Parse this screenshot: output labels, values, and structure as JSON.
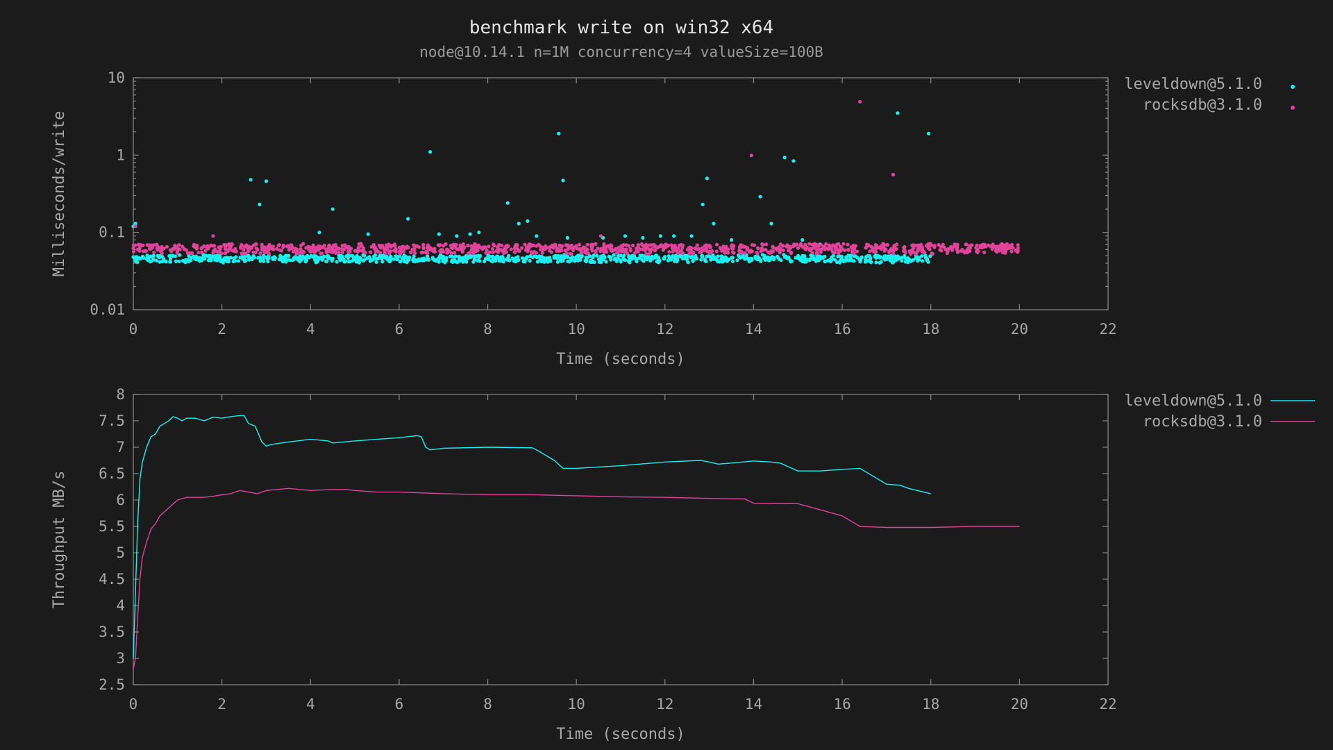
{
  "title": "benchmark write on win32 x64",
  "subtitle": "node@10.14.1 n=1M concurrency=4 valueSize=100B",
  "colors": {
    "background": "#1b1b1b",
    "leveldown": "#19f0f0",
    "rocksdb": "#e0439a",
    "axis": "#8a8a8a",
    "text": "#a8a8a8"
  },
  "chart_data": [
    {
      "type": "scatter",
      "xlabel": "Time (seconds)",
      "ylabel": "Milliseconds/write",
      "xlim": [
        0,
        22
      ],
      "ylim": [
        0.01,
        10
      ],
      "yscale": "log",
      "xticks": [
        0,
        2,
        4,
        6,
        8,
        10,
        12,
        14,
        16,
        18,
        20,
        22
      ],
      "yticks": [
        0.01,
        0.1,
        1,
        10
      ],
      "ytick_labels": [
        "0.01",
        "0.1",
        "1",
        "10"
      ],
      "legend_position": "top-right outside",
      "series": [
        {
          "name": "leveldown@5.1.0",
          "color": "#19f0f0",
          "band": {
            "x": [
              0,
              18
            ],
            "center": 0.046,
            "spread": 0.004
          },
          "outliers": [
            [
              0.0,
              0.12
            ],
            [
              0.05,
              0.13
            ],
            [
              2.65,
              0.48
            ],
            [
              2.85,
              0.23
            ],
            [
              3.0,
              0.46
            ],
            [
              4.2,
              0.1
            ],
            [
              4.5,
              0.2
            ],
            [
              5.3,
              0.095
            ],
            [
              6.2,
              0.15
            ],
            [
              6.7,
              1.1
            ],
            [
              6.9,
              0.095
            ],
            [
              7.3,
              0.09
            ],
            [
              7.6,
              0.095
            ],
            [
              7.8,
              0.1
            ],
            [
              8.45,
              0.24
            ],
            [
              8.7,
              0.13
            ],
            [
              8.9,
              0.14
            ],
            [
              9.1,
              0.09
            ],
            [
              9.6,
              1.9
            ],
            [
              9.7,
              0.47
            ],
            [
              9.8,
              0.085
            ],
            [
              10.6,
              0.085
            ],
            [
              11.1,
              0.09
            ],
            [
              11.5,
              0.085
            ],
            [
              11.9,
              0.09
            ],
            [
              12.2,
              0.09
            ],
            [
              12.6,
              0.09
            ],
            [
              12.85,
              0.23
            ],
            [
              12.95,
              0.5
            ],
            [
              13.1,
              0.13
            ],
            [
              13.5,
              0.08
            ],
            [
              14.15,
              0.29
            ],
            [
              14.4,
              0.13
            ],
            [
              14.7,
              0.93
            ],
            [
              14.9,
              0.84
            ],
            [
              15.1,
              0.08
            ],
            [
              15.5,
              0.07
            ],
            [
              17.25,
              3.5
            ],
            [
              17.95,
              1.9
            ]
          ]
        },
        {
          "name": "rocksdb@3.1.0",
          "color": "#e0439a",
          "band": {
            "x": [
              0,
              20
            ],
            "center": 0.062,
            "spread": 0.007,
            "gap": [
              16.35,
              16.5
            ]
          },
          "outliers": [
            [
              0.05,
              0.12
            ],
            [
              1.8,
              0.09
            ],
            [
              10.55,
              0.09
            ],
            [
              13.95,
              0.99
            ],
            [
              16.4,
              4.9
            ],
            [
              17.15,
              0.56
            ]
          ]
        }
      ]
    },
    {
      "type": "line",
      "xlabel": "Time (seconds)",
      "ylabel": "Throughput MB/s",
      "xlim": [
        0,
        22
      ],
      "ylim": [
        2.5,
        8
      ],
      "xticks": [
        0,
        2,
        4,
        6,
        8,
        10,
        12,
        14,
        16,
        18,
        20,
        22
      ],
      "yticks": [
        2.5,
        3,
        3.5,
        4,
        4.5,
        5,
        5.5,
        6,
        6.5,
        7,
        7.5,
        8
      ],
      "ytick_labels": [
        "2.5",
        "3",
        "3.5",
        "4",
        "4.5",
        "5",
        "5.5",
        "6",
        "6.5",
        "7",
        "7.5",
        "8"
      ],
      "legend_position": "top-right outside",
      "series": [
        {
          "name": "leveldown@5.1.0",
          "color": "#19f0f0",
          "x": [
            0,
            0.05,
            0.1,
            0.15,
            0.2,
            0.3,
            0.4,
            0.5,
            0.6,
            0.7,
            0.8,
            0.9,
            1.0,
            1.1,
            1.2,
            1.4,
            1.6,
            1.8,
            2.0,
            2.2,
            2.4,
            2.5,
            2.6,
            2.75,
            2.9,
            3.0,
            3.1,
            3.5,
            4.0,
            4.4,
            4.5,
            5.0,
            5.5,
            6.0,
            6.4,
            6.5,
            6.6,
            6.7,
            7.0,
            8.0,
            9.0,
            9.1,
            9.5,
            9.7,
            10.0,
            11.0,
            12.0,
            12.8,
            13.0,
            13.2,
            13.5,
            14.0,
            14.4,
            14.6,
            15.0,
            15.5,
            16.0,
            16.4,
            17.0,
            17.3,
            17.5,
            18.0
          ],
          "values": [
            3.0,
            4.3,
            5.6,
            6.4,
            6.7,
            7.0,
            7.2,
            7.25,
            7.4,
            7.45,
            7.5,
            7.58,
            7.55,
            7.5,
            7.55,
            7.55,
            7.5,
            7.57,
            7.55,
            7.58,
            7.6,
            7.6,
            7.45,
            7.4,
            7.1,
            7.02,
            7.05,
            7.1,
            7.15,
            7.12,
            7.08,
            7.12,
            7.15,
            7.18,
            7.22,
            7.2,
            7.0,
            6.95,
            6.98,
            7.0,
            6.99,
            6.95,
            6.75,
            6.6,
            6.6,
            6.65,
            6.72,
            6.75,
            6.72,
            6.68,
            6.7,
            6.74,
            6.72,
            6.7,
            6.55,
            6.55,
            6.58,
            6.6,
            6.3,
            6.28,
            6.22,
            6.12
          ]
        },
        {
          "name": "rocksdb@3.1.0",
          "color": "#e0439a",
          "x": [
            0,
            0.05,
            0.1,
            0.15,
            0.2,
            0.3,
            0.4,
            0.5,
            0.6,
            0.8,
            1.0,
            1.2,
            1.4,
            1.6,
            1.8,
            2.0,
            2.2,
            2.4,
            2.6,
            2.8,
            3.0,
            3.5,
            4.0,
            4.5,
            4.8,
            5.0,
            5.5,
            6.0,
            7.0,
            8.0,
            9.0,
            10.0,
            11.0,
            12.0,
            13.0,
            13.8,
            14.0,
            15.0,
            16.0,
            16.4,
            17.0,
            18.0,
            19.0,
            20.0
          ],
          "values": [
            2.8,
            3.0,
            3.8,
            4.5,
            4.9,
            5.2,
            5.45,
            5.55,
            5.7,
            5.85,
            6.0,
            6.05,
            6.05,
            6.05,
            6.07,
            6.1,
            6.12,
            6.18,
            6.15,
            6.12,
            6.18,
            6.22,
            6.18,
            6.2,
            6.2,
            6.18,
            6.15,
            6.15,
            6.12,
            6.1,
            6.1,
            6.08,
            6.06,
            6.05,
            6.03,
            6.02,
            5.94,
            5.93,
            5.7,
            5.5,
            5.48,
            5.48,
            5.5,
            5.5
          ]
        }
      ]
    }
  ]
}
